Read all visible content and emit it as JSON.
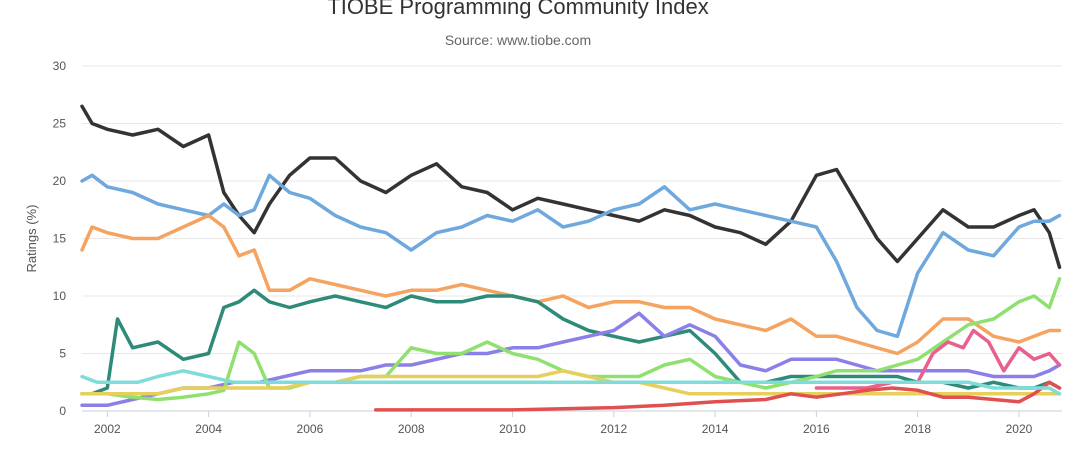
{
  "chart_data": {
    "type": "line",
    "title": "TIOBE Programming Community Index",
    "subtitle": "Source: www.tiobe.com",
    "xlabel": "",
    "ylabel": "Ratings (%)",
    "ylim": [
      0,
      30
    ],
    "xlim": [
      2001.5,
      2020.85
    ],
    "y_ticks": [
      "0",
      "5",
      "10",
      "15",
      "20",
      "25",
      "30"
    ],
    "x_ticks": [
      "2002",
      "2004",
      "2006",
      "2008",
      "2010",
      "2012",
      "2014",
      "2016",
      "2018",
      "2020"
    ],
    "grid": "horizontal",
    "legend": "none",
    "series": [
      {
        "color": "#333333",
        "x": [
          2001.5,
          2001.7,
          2002.0,
          2002.5,
          2003.0,
          2003.5,
          2004.0,
          2004.3,
          2004.6,
          2004.9,
          2005.2,
          2005.6,
          2006.0,
          2006.5,
          2007.0,
          2007.5,
          2008.0,
          2008.5,
          2009.0,
          2009.5,
          2010.0,
          2010.5,
          2011.0,
          2011.5,
          2012.0,
          2012.5,
          2013.0,
          2013.5,
          2014.0,
          2014.5,
          2015.0,
          2015.5,
          2016.0,
          2016.4,
          2016.8,
          2017.2,
          2017.6,
          2018.0,
          2018.5,
          2019.0,
          2019.5,
          2020.0,
          2020.3,
          2020.6,
          2020.8
        ],
        "values": [
          26.5,
          25,
          24.5,
          24,
          24.5,
          23,
          24,
          19,
          17,
          15.5,
          18,
          20.5,
          22,
          22,
          20,
          19,
          20.5,
          21.5,
          19.5,
          19,
          17.5,
          18.5,
          18,
          17.5,
          17,
          16.5,
          17.5,
          17,
          16,
          15.5,
          14.5,
          16.5,
          20.5,
          21,
          18,
          15,
          13,
          15,
          17.5,
          16,
          16,
          17,
          17.5,
          15.5,
          12.5
        ]
      },
      {
        "color": "#6fa8dc",
        "x": [
          2001.5,
          2001.7,
          2002.0,
          2002.5,
          2003.0,
          2003.5,
          2004.0,
          2004.3,
          2004.6,
          2004.9,
          2005.2,
          2005.6,
          2006.0,
          2006.5,
          2007.0,
          2007.5,
          2008.0,
          2008.5,
          2009.0,
          2009.5,
          2010.0,
          2010.5,
          2011.0,
          2011.5,
          2012.0,
          2012.5,
          2013.0,
          2013.5,
          2014.0,
          2014.5,
          2015.0,
          2015.5,
          2016.0,
          2016.4,
          2016.8,
          2017.2,
          2017.6,
          2018.0,
          2018.5,
          2019.0,
          2019.5,
          2020.0,
          2020.3,
          2020.6,
          2020.8
        ],
        "values": [
          20,
          20.5,
          19.5,
          19,
          18,
          17.5,
          17,
          18,
          17,
          17.5,
          20.5,
          19,
          18.5,
          17,
          16,
          15.5,
          14,
          15.5,
          16,
          17,
          16.5,
          17.5,
          16,
          16.5,
          17.5,
          18,
          19.5,
          17.5,
          18,
          17.5,
          17,
          16.5,
          16,
          13,
          9,
          7,
          6.5,
          12,
          15.5,
          14,
          13.5,
          16,
          16.5,
          16.5,
          17
        ]
      },
      {
        "color": "#f4a460",
        "x": [
          2001.5,
          2001.7,
          2002.0,
          2002.5,
          2003.0,
          2003.5,
          2004.0,
          2004.3,
          2004.6,
          2004.9,
          2005.2,
          2005.6,
          2006.0,
          2006.5,
          2007.0,
          2007.5,
          2008.0,
          2008.5,
          2009.0,
          2009.5,
          2010.0,
          2010.5,
          2011.0,
          2011.5,
          2012.0,
          2012.5,
          2013.0,
          2013.5,
          2014.0,
          2014.5,
          2015.0,
          2015.5,
          2016.0,
          2016.4,
          2016.8,
          2017.2,
          2017.6,
          2018.0,
          2018.5,
          2019.0,
          2019.5,
          2020.0,
          2020.3,
          2020.6,
          2020.8
        ],
        "values": [
          14,
          16,
          15.5,
          15,
          15,
          16,
          17,
          16,
          13.5,
          14,
          10.5,
          10.5,
          11.5,
          11,
          10.5,
          10,
          10.5,
          10.5,
          11,
          10.5,
          10,
          9.5,
          10,
          9,
          9.5,
          9.5,
          9,
          9,
          8,
          7.5,
          7,
          8,
          6.5,
          6.5,
          6,
          5.5,
          5,
          6,
          8,
          8,
          6.5,
          6,
          6.5,
          7,
          7
        ]
      },
      {
        "color": "#2e8b7a",
        "x": [
          2001.5,
          2001.7,
          2002.0,
          2002.2,
          2002.5,
          2003.0,
          2003.5,
          2004.0,
          2004.3,
          2004.6,
          2004.9,
          2005.2,
          2005.6,
          2006.0,
          2006.5,
          2007.0,
          2007.5,
          2008.0,
          2008.5,
          2009.0,
          2009.5,
          2010.0,
          2010.5,
          2011.0,
          2011.5,
          2012.0,
          2012.5,
          2013.0,
          2013.5,
          2014.0,
          2014.5,
          2015.0,
          2015.5,
          2016.0,
          2016.4,
          2016.8,
          2017.2,
          2017.6,
          2018.0,
          2018.5,
          2019.0,
          2019.5,
          2020.0,
          2020.3,
          2020.6,
          2020.8
        ],
        "values": [
          1.5,
          1.5,
          2,
          8,
          5.5,
          6,
          4.5,
          5,
          9,
          9.5,
          10.5,
          9.5,
          9,
          9.5,
          10,
          9.5,
          9,
          10,
          9.5,
          9.5,
          10,
          10,
          9.5,
          8,
          7,
          6.5,
          6,
          6.5,
          7,
          5,
          2.5,
          2.5,
          3,
          3,
          3,
          3,
          3,
          3,
          2.5,
          2.5,
          2,
          2.5,
          2,
          2,
          2.5,
          2
        ]
      },
      {
        "color": "#8b7fe8",
        "x": [
          2001.5,
          2002.0,
          2002.5,
          2003.0,
          2003.5,
          2004.0,
          2004.5,
          2005.0,
          2005.5,
          2006.0,
          2006.5,
          2007.0,
          2007.5,
          2008.0,
          2008.5,
          2009.0,
          2009.5,
          2010.0,
          2010.5,
          2011.0,
          2011.5,
          2012.0,
          2012.5,
          2013.0,
          2013.5,
          2014.0,
          2014.5,
          2015.0,
          2015.5,
          2016.0,
          2016.4,
          2016.8,
          2017.2,
          2017.6,
          2018.0,
          2018.5,
          2019.0,
          2019.5,
          2020.0,
          2020.3,
          2020.6,
          2020.8
        ],
        "values": [
          0.5,
          0.5,
          1,
          1.5,
          2,
          2,
          2.5,
          2.5,
          3,
          3.5,
          3.5,
          3.5,
          4,
          4,
          4.5,
          5,
          5,
          5.5,
          5.5,
          6,
          6.5,
          7,
          8.5,
          6.5,
          7.5,
          6.5,
          4,
          3.5,
          4.5,
          4.5,
          4.5,
          4,
          3.5,
          3.5,
          3.5,
          3.5,
          3.5,
          3,
          3,
          3,
          3.5,
          4
        ]
      },
      {
        "color": "#90e070",
        "x": [
          2001.5,
          2002.0,
          2002.5,
          2003.0,
          2003.5,
          2004.0,
          2004.3,
          2004.6,
          2004.9,
          2005.2,
          2005.6,
          2006.0,
          2006.5,
          2007.0,
          2007.5,
          2008.0,
          2008.5,
          2009.0,
          2009.5,
          2010.0,
          2010.5,
          2011.0,
          2011.5,
          2012.0,
          2012.5,
          2013.0,
          2013.5,
          2014.0,
          2014.5,
          2015.0,
          2015.5,
          2016.0,
          2016.4,
          2016.8,
          2017.2,
          2017.6,
          2018.0,
          2018.5,
          2019.0,
          2019.5,
          2020.0,
          2020.3,
          2020.6,
          2020.8
        ],
        "values": [
          1.5,
          1.5,
          1.2,
          1,
          1.2,
          1.5,
          1.8,
          6,
          5,
          2,
          2,
          2.5,
          2.5,
          3,
          3,
          5.5,
          5,
          5,
          6,
          5,
          4.5,
          3.5,
          3,
          3,
          3,
          4,
          4.5,
          3,
          2.5,
          2,
          2.5,
          3,
          3.5,
          3.5,
          3.5,
          4,
          4.5,
          6,
          7.5,
          8,
          9.5,
          10,
          9,
          11.5
        ]
      },
      {
        "color": "#e6cf5a",
        "x": [
          2001.5,
          2002.0,
          2002.5,
          2003.0,
          2003.5,
          2004.0,
          2004.5,
          2005.0,
          2005.5,
          2006.0,
          2006.5,
          2007.0,
          2007.5,
          2008.0,
          2008.5,
          2009.0,
          2009.5,
          2010.0,
          2010.5,
          2011.0,
          2011.5,
          2012.0,
          2012.5,
          2013.0,
          2013.5,
          2014.0,
          2014.5,
          2015.0,
          2015.5,
          2016.0,
          2016.4,
          2016.8,
          2017.2,
          2017.6,
          2018.0,
          2018.5,
          2019.0,
          2019.5,
          2020.0,
          2020.3,
          2020.6,
          2020.8
        ],
        "values": [
          1.5,
          1.5,
          1.5,
          1.5,
          2,
          2,
          2,
          2,
          2,
          2.5,
          2.5,
          3,
          3,
          3,
          3,
          3,
          3,
          3,
          3,
          3.5,
          3,
          2.5,
          2.5,
          2,
          1.5,
          1.5,
          1.5,
          1.5,
          1.5,
          1.5,
          1.5,
          1.5,
          1.5,
          1.5,
          1.5,
          1.5,
          1.5,
          1.5,
          1.5,
          1.5,
          1.5,
          1.5
        ]
      },
      {
        "color": "#e8608c",
        "x": [
          2016.0,
          2016.5,
          2017.0,
          2017.5,
          2018.0,
          2018.3,
          2018.6,
          2018.9,
          2019.1,
          2019.4,
          2019.7,
          2020.0,
          2020.3,
          2020.6,
          2020.8
        ],
        "values": [
          2,
          2,
          2,
          2.5,
          2.5,
          5,
          6,
          5.5,
          7,
          6,
          3.5,
          5.5,
          4.5,
          5,
          4
        ]
      },
      {
        "color": "#e05050",
        "x": [
          2007.3,
          2008.0,
          2009.0,
          2010.0,
          2011.0,
          2012.0,
          2013.0,
          2014.0,
          2015.0,
          2015.5,
          2016.0,
          2016.5,
          2017.0,
          2017.5,
          2018.0,
          2018.5,
          2019.0,
          2019.5,
          2020.0,
          2020.3,
          2020.6,
          2020.8
        ],
        "values": [
          0.1,
          0.1,
          0.1,
          0.1,
          0.2,
          0.3,
          0.5,
          0.8,
          1,
          1.5,
          1.2,
          1.5,
          1.8,
          2,
          1.8,
          1.2,
          1.2,
          1,
          0.8,
          1.5,
          2.5,
          2
        ]
      },
      {
        "color": "#7fdcd8",
        "x": [
          2001.5,
          2001.8,
          2002.2,
          2002.6,
          2003.0,
          2003.5,
          2004.0,
          2004.5,
          2005.0,
          2006.0,
          2007.0,
          2008.0,
          2009.0,
          2010.0,
          2011.0,
          2012.0,
          2013.0,
          2014.0,
          2015.0,
          2016.0,
          2017.0,
          2018.0,
          2018.5,
          2019.0,
          2019.5,
          2020.0,
          2020.3,
          2020.6,
          2020.8
        ],
        "values": [
          3,
          2.5,
          2.5,
          2.5,
          3,
          3.5,
          3,
          2.5,
          2.5,
          2.5,
          2.5,
          2.5,
          2.5,
          2.5,
          2.5,
          2.5,
          2.5,
          2.5,
          2.5,
          2.5,
          2.5,
          2.5,
          2.5,
          2.5,
          2,
          2,
          2,
          2,
          1.5
        ]
      }
    ]
  }
}
